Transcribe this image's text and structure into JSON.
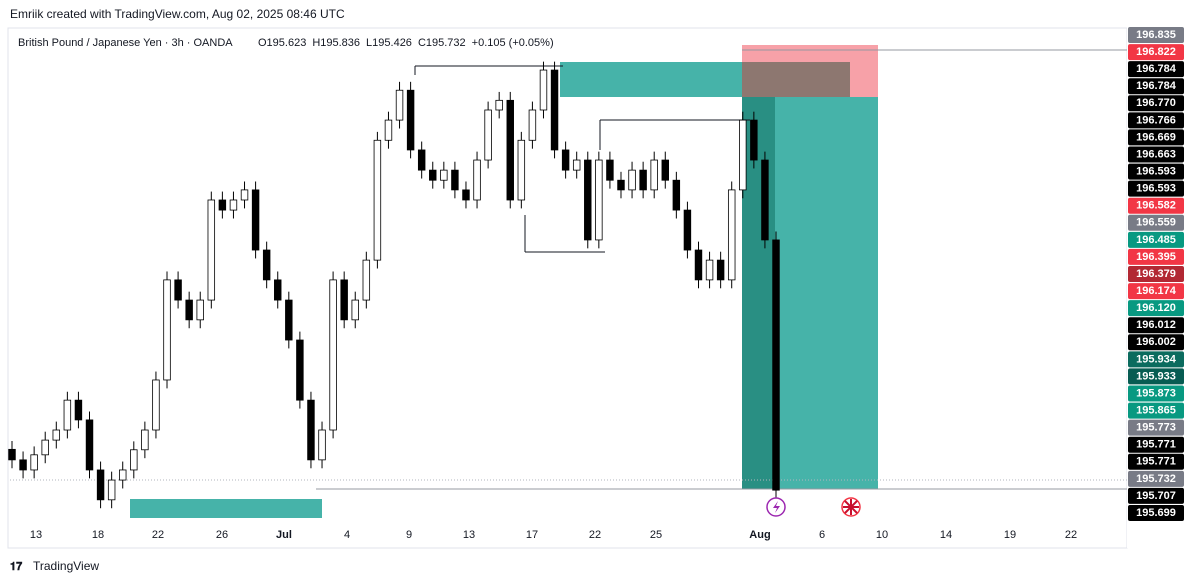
{
  "header": {
    "attribution": "Emriik created with TradingView.com, Aug 02, 2025 08:46 UTC"
  },
  "footer": {
    "brand": "TradingView"
  },
  "chart_data": {
    "type": "candlestick",
    "symbol": "British Pound / Japanese Yen · 3h · OANDA",
    "ohlc_legend": [
      "O195.623",
      "H195.836",
      "L195.426",
      "C195.732",
      "+0.105 (+0.05%)"
    ],
    "ylim": [
      195.682,
      196.852
    ],
    "x_labels": [
      "13",
      "18",
      "22",
      "26",
      "Jul",
      "4",
      "9",
      "13",
      "17",
      "22",
      "25",
      "Aug",
      "6",
      "10",
      "14",
      "19",
      "22"
    ],
    "price_labels": [
      {
        "label": "196.835",
        "color": "#787b86"
      },
      {
        "label": "196.822",
        "color": "#f23645"
      },
      {
        "label": "196.784",
        "color": "#000000"
      },
      {
        "label": "196.784",
        "color": "#000000"
      },
      {
        "label": "196.770",
        "color": "#000000"
      },
      {
        "label": "196.766",
        "color": "#000000"
      },
      {
        "label": "196.669",
        "color": "#000000"
      },
      {
        "label": "196.663",
        "color": "#000000"
      },
      {
        "label": "196.593",
        "color": "#000000"
      },
      {
        "label": "196.593",
        "color": "#000000"
      },
      {
        "label": "196.582",
        "color": "#f23645"
      },
      {
        "label": "196.559",
        "color": "#787b86"
      },
      {
        "label": "196.485",
        "color": "#089981"
      },
      {
        "label": "196.395",
        "color": "#f23645"
      },
      {
        "label": "196.379",
        "color": "#b22833"
      },
      {
        "label": "196.174",
        "color": "#f23645"
      },
      {
        "label": "196.120",
        "color": "#089981"
      },
      {
        "label": "196.012",
        "color": "#000000"
      },
      {
        "label": "196.002",
        "color": "#000000"
      },
      {
        "label": "195.934",
        "color": "#0b6b5e"
      },
      {
        "label": "195.933",
        "color": "#075c52"
      },
      {
        "label": "195.873",
        "color": "#089981"
      },
      {
        "label": "195.865",
        "color": "#089981"
      },
      {
        "label": "195.773",
        "color": "#787b86"
      },
      {
        "label": "195.771",
        "color": "#000000"
      },
      {
        "label": "195.771",
        "color": "#000000"
      },
      {
        "label": "195.732",
        "color": "#787b86"
      },
      {
        "label": "195.707",
        "color": "#000000"
      },
      {
        "label": "195.699",
        "color": "#000000"
      }
    ],
    "up_color": "#ffffff",
    "down_color": "#000000",
    "wick_color": "#000000",
    "candles": [
      [
        195.85,
        195.87,
        195.805,
        195.825
      ],
      [
        195.825,
        195.845,
        195.781,
        195.801
      ],
      [
        195.801,
        195.857,
        195.781,
        195.837
      ],
      [
        195.837,
        195.892,
        195.817,
        195.872
      ],
      [
        195.872,
        195.916,
        195.852,
        195.896
      ],
      [
        195.896,
        195.987,
        195.876,
        195.967
      ],
      [
        195.967,
        195.987,
        195.9,
        195.92
      ],
      [
        195.92,
        195.94,
        195.781,
        195.801
      ],
      [
        195.801,
        195.821,
        195.71,
        195.73
      ],
      [
        195.73,
        195.797,
        195.71,
        195.777
      ],
      [
        195.777,
        195.821,
        195.757,
        195.801
      ],
      [
        195.801,
        195.869,
        195.781,
        195.849
      ],
      [
        195.849,
        195.916,
        195.829,
        195.896
      ],
      [
        195.896,
        196.035,
        195.876,
        196.015
      ],
      [
        196.015,
        196.273,
        195.995,
        196.253
      ],
      [
        196.253,
        196.273,
        196.185,
        196.205
      ],
      [
        196.205,
        196.225,
        196.138,
        196.158
      ],
      [
        196.158,
        196.225,
        196.138,
        196.205
      ],
      [
        196.205,
        196.463,
        196.185,
        196.443
      ],
      [
        196.443,
        196.463,
        196.399,
        196.419
      ],
      [
        196.419,
        196.463,
        196.399,
        196.443
      ],
      [
        196.443,
        196.487,
        196.423,
        196.467
      ],
      [
        196.467,
        196.487,
        196.304,
        196.324
      ],
      [
        196.324,
        196.344,
        196.233,
        196.253
      ],
      [
        196.253,
        196.273,
        196.185,
        196.205
      ],
      [
        196.205,
        196.225,
        196.09,
        196.11
      ],
      [
        196.11,
        196.13,
        195.947,
        195.967
      ],
      [
        195.967,
        195.987,
        195.805,
        195.825
      ],
      [
        195.825,
        195.916,
        195.805,
        195.896
      ],
      [
        195.896,
        196.273,
        195.876,
        196.253
      ],
      [
        196.253,
        196.273,
        196.138,
        196.158
      ],
      [
        196.158,
        196.225,
        196.138,
        196.205
      ],
      [
        196.205,
        196.32,
        196.185,
        196.3
      ],
      [
        196.3,
        196.605,
        196.28,
        196.585
      ],
      [
        196.585,
        196.653,
        196.565,
        196.633
      ],
      [
        196.633,
        196.724,
        196.613,
        196.704
      ],
      [
        196.704,
        196.724,
        196.542,
        196.562
      ],
      [
        196.562,
        196.582,
        196.494,
        196.514
      ],
      [
        196.514,
        196.534,
        196.47,
        196.49
      ],
      [
        196.49,
        196.534,
        196.47,
        196.514
      ],
      [
        196.514,
        196.534,
        196.447,
        196.467
      ],
      [
        196.467,
        196.487,
        196.423,
        196.443
      ],
      [
        196.443,
        196.558,
        196.423,
        196.538
      ],
      [
        196.538,
        196.677,
        196.518,
        196.657
      ],
      [
        196.657,
        196.7,
        196.637,
        196.68
      ],
      [
        196.68,
        196.7,
        196.423,
        196.443
      ],
      [
        196.443,
        196.605,
        196.423,
        196.585
      ],
      [
        196.585,
        196.677,
        196.565,
        196.657
      ],
      [
        196.657,
        196.772,
        196.637,
        196.752
      ],
      [
        196.752,
        196.772,
        196.542,
        196.562
      ],
      [
        196.562,
        196.582,
        196.494,
        196.514
      ],
      [
        196.514,
        196.558,
        196.494,
        196.538
      ],
      [
        196.538,
        196.558,
        196.328,
        196.348
      ],
      [
        196.348,
        196.558,
        196.328,
        196.538
      ],
      [
        196.538,
        196.558,
        196.47,
        196.49
      ],
      [
        196.49,
        196.51,
        196.447,
        196.467
      ],
      [
        196.467,
        196.534,
        196.447,
        196.514
      ],
      [
        196.514,
        196.534,
        196.447,
        196.467
      ],
      [
        196.467,
        196.558,
        196.447,
        196.538
      ],
      [
        196.538,
        196.558,
        196.47,
        196.49
      ],
      [
        196.49,
        196.51,
        196.399,
        196.419
      ],
      [
        196.419,
        196.439,
        196.304,
        196.324
      ],
      [
        196.324,
        196.344,
        196.233,
        196.253
      ],
      [
        196.253,
        196.32,
        196.233,
        196.3
      ],
      [
        196.3,
        196.32,
        196.233,
        196.253
      ],
      [
        196.253,
        196.487,
        196.233,
        196.467
      ],
      [
        196.467,
        196.653,
        196.447,
        196.633
      ],
      [
        196.633,
        196.653,
        196.518,
        196.538
      ],
      [
        196.538,
        196.558,
        196.328,
        196.348
      ],
      [
        196.348,
        196.368,
        195.713,
        195.753
      ]
    ]
  }
}
